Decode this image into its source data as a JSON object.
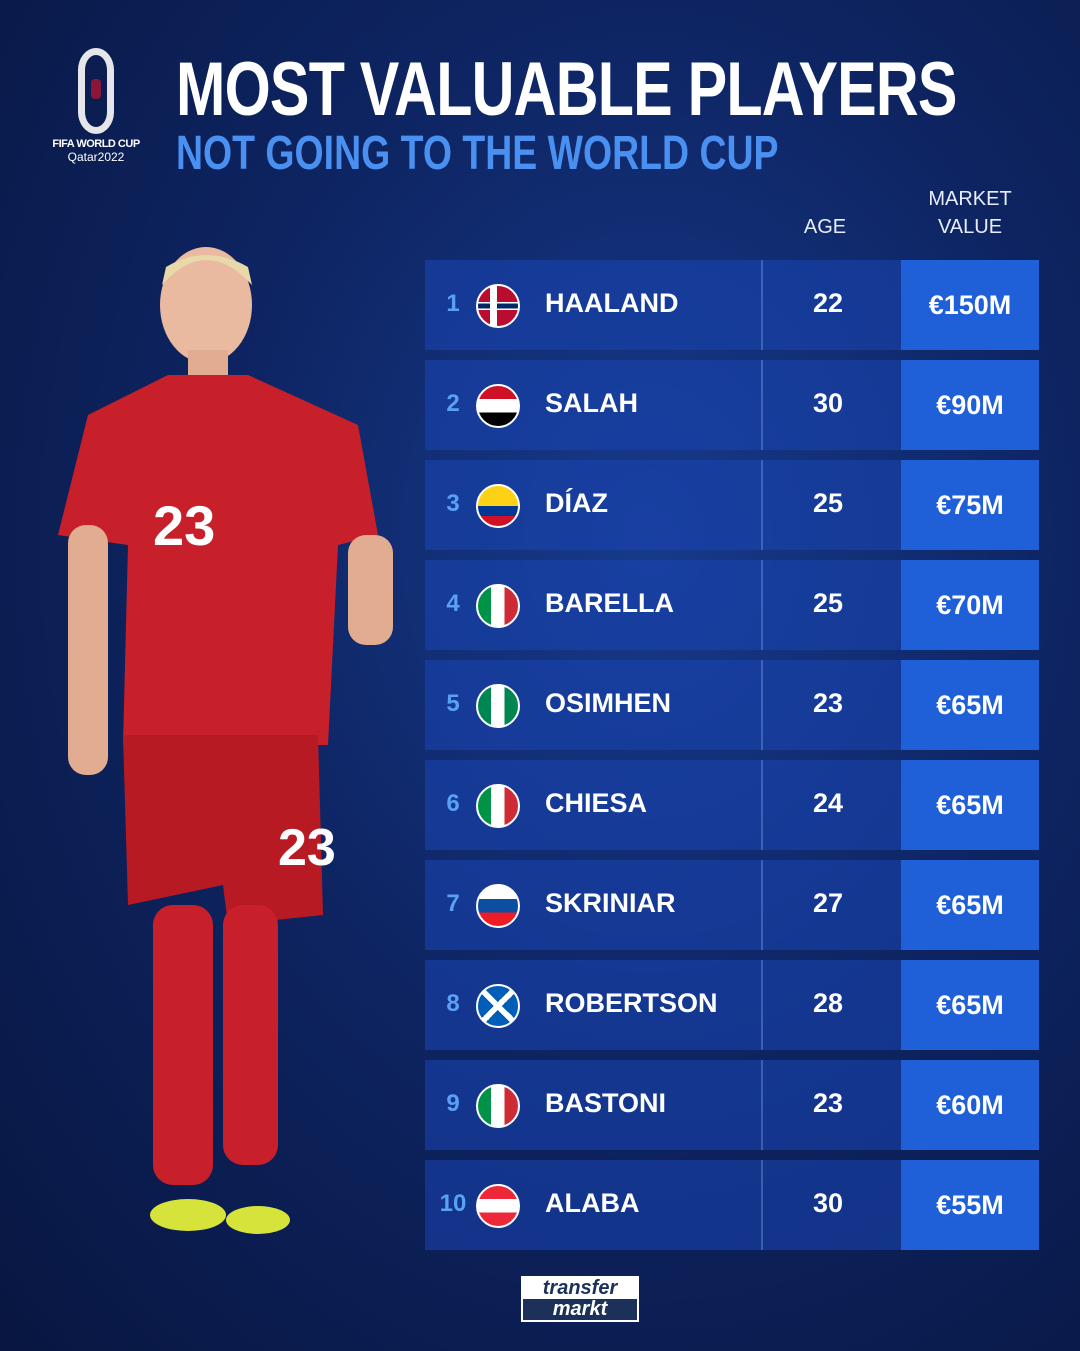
{
  "logo": {
    "line1": "FIFA WORLD CUP",
    "line2": "Qatar2022"
  },
  "title": "MOST VALUABLE PLAYERS",
  "subtitle": "NOT GOING TO THE WORLD CUP",
  "headers": {
    "age": "AGE",
    "market_value_1": "MARKET",
    "market_value_2": "VALUE"
  },
  "players": [
    {
      "rank": "1",
      "name": "HAALAND",
      "country": "Norway",
      "age": "22",
      "value": "€150M"
    },
    {
      "rank": "2",
      "name": "SALAH",
      "country": "Egypt",
      "age": "30",
      "value": "€90M"
    },
    {
      "rank": "3",
      "name": "DÍAZ",
      "country": "Colombia",
      "age": "25",
      "value": "€75M"
    },
    {
      "rank": "4",
      "name": "BARELLA",
      "country": "Italy",
      "age": "25",
      "value": "€70M"
    },
    {
      "rank": "5",
      "name": "OSIMHEN",
      "country": "Nigeria",
      "age": "23",
      "value": "€65M"
    },
    {
      "rank": "6",
      "name": "CHIESA",
      "country": "Italy",
      "age": "24",
      "value": "€65M"
    },
    {
      "rank": "7",
      "name": "SKRINIAR",
      "country": "Slovakia",
      "age": "27",
      "value": "€65M"
    },
    {
      "rank": "8",
      "name": "ROBERTSON",
      "country": "Scotland",
      "age": "28",
      "value": "€65M"
    },
    {
      "rank": "9",
      "name": "BASTONI",
      "country": "Italy",
      "age": "23",
      "value": "€60M"
    },
    {
      "rank": "10",
      "name": "ALABA",
      "country": "Austria",
      "age": "30",
      "value": "€55M"
    }
  ],
  "brand": {
    "line1": "transfer",
    "line2": "markt"
  },
  "colors": {
    "accent": "#1f5fd8",
    "subtitle": "#4a90f0",
    "rank": "#5aa0f5"
  }
}
